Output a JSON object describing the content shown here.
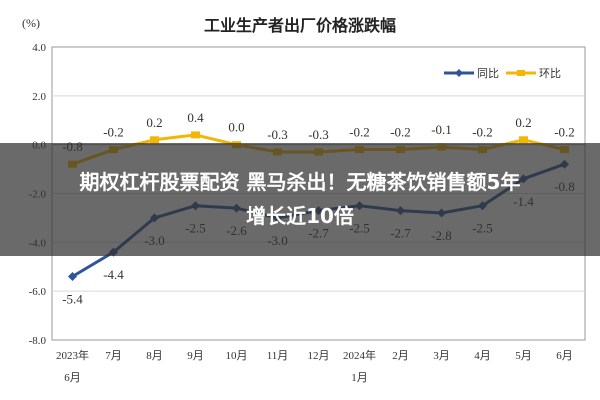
{
  "unit_label": "(%)",
  "chart_data": {
    "type": "line",
    "title": "工业生产者出厂价格涨跌幅",
    "xlabel": "",
    "ylabel": "(%)",
    "ylim": [
      -8.0,
      4.0
    ],
    "yticks": [
      "4.0",
      "2.0",
      "0.0",
      "-2.0",
      "-4.0",
      "-6.0",
      "-8.0"
    ],
    "categories": [
      "2023年6月",
      "7月",
      "8月",
      "9月",
      "10月",
      "11月",
      "12月",
      "2024年1月",
      "2月",
      "3月",
      "4月",
      "5月",
      "6月"
    ],
    "grid": true,
    "legend_position": "top-right",
    "series": [
      {
        "name": "同比",
        "color": "#2f5597",
        "values": [
          -5.4,
          -4.4,
          -3.0,
          -2.5,
          -2.6,
          -3.0,
          -2.7,
          -2.5,
          -2.7,
          -2.8,
          -2.5,
          -1.4,
          -0.8
        ],
        "labels": [
          "-5.4",
          "-4.4",
          "-3.0",
          "-2.5",
          "-2.6",
          "-3.0",
          "-2.7",
          "-2.5",
          "-2.7",
          "-2.8",
          "-2.5",
          "-1.4",
          "-0.8"
        ]
      },
      {
        "name": "环比",
        "color": "#f2b705",
        "values": [
          -0.8,
          -0.2,
          0.2,
          0.4,
          0.0,
          -0.3,
          -0.3,
          -0.2,
          -0.2,
          -0.1,
          -0.2,
          0.2,
          -0.2
        ],
        "labels": [
          "-0.8",
          "-0.2",
          "0.2",
          "0.4",
          "0.0",
          "-0.3",
          "-0.3",
          "-0.2",
          "-0.2",
          "-0.1",
          "-0.2",
          "0.2",
          "-0.2"
        ]
      }
    ]
  },
  "overlay": {
    "headline_line1": "期权杠杆股票配资 黑马杀出！无糖茶饮销售额5年",
    "headline_line2": "增长近10倍"
  }
}
